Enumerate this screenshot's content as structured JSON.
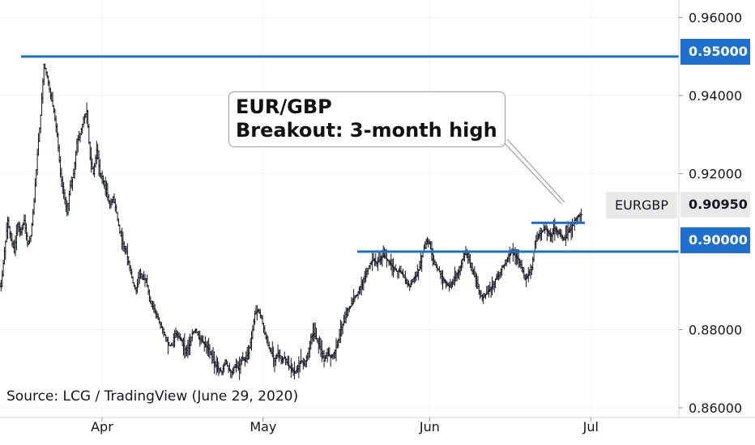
{
  "chart_data": {
    "type": "line",
    "subtype": "ohlc-bars",
    "symbol": "EURGBP",
    "annotation_lines": [
      "EUR/GBP",
      "Breakout: 3-month high"
    ],
    "source": "Source: LCG / TradingView (June 29, 2020)",
    "x_tick_labels": [
      "Apr",
      "May",
      "Jun",
      "Jul"
    ],
    "y_tick_labels": [
      "0.96000",
      "0.94000",
      "0.92000",
      "0.88000",
      "0.86000"
    ],
    "ylim": [
      0.8575,
      0.9645
    ],
    "last_price": "0.90950",
    "levels": [
      {
        "value": 0.95,
        "label": "0.95000"
      },
      {
        "value": 0.9,
        "label": "0.90000"
      },
      {
        "value": 0.9074,
        "label": ""
      }
    ],
    "series": [
      {
        "values": [
          0.891,
          0.9,
          0.908,
          0.903,
          0.9,
          0.907,
          0.905,
          0.908,
          0.902,
          0.904,
          0.913,
          0.925,
          0.935,
          0.948,
          0.945,
          0.94,
          0.936,
          0.93,
          0.92,
          0.915,
          0.91,
          0.917,
          0.92,
          0.928,
          0.93,
          0.934,
          0.936,
          0.924,
          0.92,
          0.926,
          0.92,
          0.918,
          0.915,
          0.912,
          0.914,
          0.91,
          0.905,
          0.902,
          0.9,
          0.896,
          0.892,
          0.89,
          0.895,
          0.893,
          0.893,
          0.888,
          0.886,
          0.884,
          0.882,
          0.88,
          0.878,
          0.876,
          0.876,
          0.879,
          0.878,
          0.877,
          0.874,
          0.876,
          0.879,
          0.88,
          0.878,
          0.877,
          0.876,
          0.875,
          0.873,
          0.871,
          0.87,
          0.869,
          0.872,
          0.87,
          0.869,
          0.871,
          0.87,
          0.873,
          0.872,
          0.874,
          0.878,
          0.884,
          0.885,
          0.883,
          0.879,
          0.876,
          0.874,
          0.872,
          0.874,
          0.872,
          0.873,
          0.871,
          0.87,
          0.869,
          0.87,
          0.872,
          0.871,
          0.874,
          0.878,
          0.879,
          0.877,
          0.875,
          0.872,
          0.874,
          0.873,
          0.874,
          0.876,
          0.88,
          0.882,
          0.885,
          0.886,
          0.888,
          0.889,
          0.891,
          0.893,
          0.895,
          0.897,
          0.898,
          0.897,
          0.898,
          0.899,
          0.898,
          0.897,
          0.896,
          0.895,
          0.895,
          0.894,
          0.892,
          0.891,
          0.893,
          0.894,
          0.896,
          0.9,
          0.903,
          0.902,
          0.898,
          0.896,
          0.895,
          0.893,
          0.892,
          0.891,
          0.892,
          0.894,
          0.895,
          0.898,
          0.9,
          0.898,
          0.895,
          0.893,
          0.89,
          0.888,
          0.889,
          0.89,
          0.891,
          0.893,
          0.894,
          0.896,
          0.897,
          0.899,
          0.9,
          0.899,
          0.898,
          0.896,
          0.893,
          0.894,
          0.896,
          0.902,
          0.904,
          0.905,
          0.906,
          0.905,
          0.904,
          0.906,
          0.905,
          0.904,
          0.903,
          0.905,
          0.906,
          0.908,
          0.909,
          0.9095
        ],
        "x_start_date": "2020-03-13",
        "x_end_date": "2020-06-29"
      }
    ]
  }
}
